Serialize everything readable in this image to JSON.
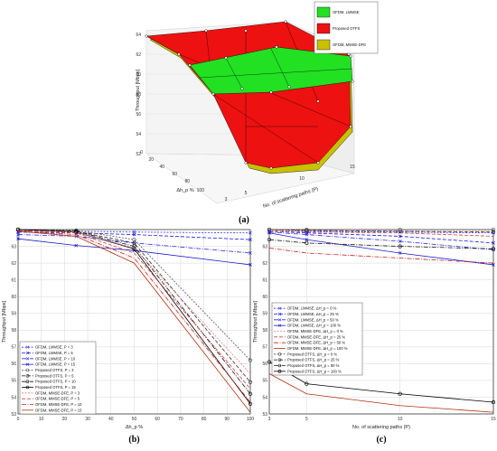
{
  "chart_data": [
    {
      "panel": "(a)",
      "type": "surface",
      "xlabel": "No. of scattering paths (P)",
      "ylabel": "Δh_p %",
      "zlabel": "Throughput [Mbps]",
      "x_ticks": [
        "3",
        "5",
        "10",
        "15"
      ],
      "y_ticks": [
        "0",
        "20",
        "40",
        "60",
        "80",
        "100"
      ],
      "z_ticks": [
        "52",
        "54",
        "56",
        "58",
        "60",
        "62",
        "64"
      ],
      "grid": true,
      "legend_position": "top-right",
      "series": [
        {
          "name": "OFDM, LMMSE",
          "color": "#22e022"
        },
        {
          "name": "Proposed OTFS",
          "color": "#ee1111"
        },
        {
          "name": "OFDM, MMSE-DFE",
          "color": "#c8c000"
        }
      ]
    },
    {
      "panel": "(b)",
      "type": "line",
      "xlabel": "Δh_p %",
      "ylabel": "Throughput [Mbps]",
      "xlim": [
        0,
        100
      ],
      "ylim": [
        53,
        64
      ],
      "x": [
        0,
        25,
        50,
        100
      ],
      "x_ticks": [
        "0",
        "10",
        "20",
        "30",
        "40",
        "50",
        "60",
        "70",
        "80",
        "90",
        "100"
      ],
      "y_ticks": [
        "53",
        "54",
        "55",
        "56",
        "57",
        "58",
        "59",
        "60",
        "61",
        "62",
        "63"
      ],
      "grid": true,
      "legend_position": "bottom-left",
      "series": [
        {
          "name": "OFDM, LMMSE, P = 3",
          "color": "#3a3aff",
          "dash": "2,1.5",
          "marker": "x",
          "values": [
            63.9,
            63.9,
            63.85,
            63.8
          ]
        },
        {
          "name": "OFDM, LMMSE, P = 5",
          "color": "#1515ee",
          "dash": "4,2",
          "marker": "x",
          "values": [
            63.85,
            63.8,
            63.7,
            63.4
          ]
        },
        {
          "name": "OFDM, LMMSE, P = 10",
          "color": "#2a2aee",
          "dash": "5,1.5,1,1.5",
          "marker": "x",
          "values": [
            63.7,
            63.6,
            63.2,
            62.6
          ]
        },
        {
          "name": "OFDM, LMMSE, P = 15",
          "color": "#1a1ad0",
          "dash": "",
          "marker": "x",
          "values": [
            63.45,
            63.05,
            62.75,
            61.9
          ]
        },
        {
          "name": "Proposed OTFS, P = 3",
          "color": "#555555",
          "dash": "2,1.5",
          "marker": "o",
          "values": [
            64.0,
            63.95,
            63.4,
            56.2
          ]
        },
        {
          "name": "Proposed OTFS, P = 5",
          "color": "#333333",
          "dash": "4,2",
          "marker": "o",
          "values": [
            64.0,
            63.9,
            63.2,
            54.9
          ]
        },
        {
          "name": "Proposed OTFS, P = 10",
          "color": "#111111",
          "dash": "5,1.5,1,1.5",
          "marker": "o",
          "values": [
            64.0,
            63.9,
            63.0,
            54.2
          ]
        },
        {
          "name": "Proposed OTFS, P = 15",
          "color": "#000000",
          "dash": "",
          "marker": "o",
          "values": [
            64.0,
            63.85,
            62.85,
            53.6
          ]
        },
        {
          "name": "OFDM, MMSE-DFE, P = 3",
          "color": "#e08080",
          "dash": "2,1.5",
          "marker": "",
          "values": [
            63.95,
            63.85,
            62.9,
            55.4
          ]
        },
        {
          "name": "OFDM, MMSE-DFE, P = 5",
          "color": "#d04040",
          "dash": "4,2",
          "marker": "",
          "values": [
            63.95,
            63.8,
            62.6,
            54.5
          ]
        },
        {
          "name": "OFDM, MMSE-DFE, P = 10",
          "color": "#c02020",
          "dash": "5,1.5,1,1.5",
          "marker": "",
          "values": [
            63.9,
            63.7,
            62.3,
            53.7
          ]
        },
        {
          "name": "OFDM, MMSE-DFE, P = 15",
          "color": "#b03010",
          "dash": "",
          "marker": "",
          "values": [
            63.9,
            63.6,
            62.0,
            53.1
          ]
        }
      ]
    },
    {
      "panel": "(c)",
      "type": "line",
      "xlabel": "No. of scattering paths (P)",
      "ylabel": "Throughput [Mbps]",
      "xlim": [
        3,
        15
      ],
      "ylim": [
        53,
        64
      ],
      "x": [
        3,
        5,
        10,
        15
      ],
      "x_ticks": [
        "3",
        "5",
        "10",
        "15"
      ],
      "y_ticks": [
        "53",
        "54",
        "55",
        "56",
        "57",
        "58",
        "59",
        "60",
        "61",
        "62",
        "63"
      ],
      "grid": true,
      "legend_position": "center-left",
      "series": [
        {
          "name": "OFDM, LMMSE, ΔH_p = 0 %",
          "color": "#3a3aff",
          "dash": "2,1.5",
          "marker": "x",
          "values": [
            63.95,
            63.9,
            63.85,
            63.8
          ]
        },
        {
          "name": "OFDM, LMMSE, ΔH_p = 25 %",
          "color": "#1515ee",
          "dash": "4,2",
          "marker": "x",
          "values": [
            63.9,
            63.8,
            63.6,
            63.2
          ]
        },
        {
          "name": "OFDM, LMMSE, ΔH_p = 50 %",
          "color": "#2a2aee",
          "dash": "5,1.5,1,1.5",
          "marker": "x",
          "values": [
            63.85,
            63.7,
            63.3,
            62.8
          ]
        },
        {
          "name": "OFDM, LMMSE, ΔH_p = 100 %",
          "color": "#1a1ad0",
          "dash": "",
          "marker": "x",
          "values": [
            63.8,
            63.4,
            62.6,
            61.9
          ]
        },
        {
          "name": "OFDM, MMSE-DFE, ΔH_p = 0 %",
          "color": "#e08080",
          "dash": "2,1.5",
          "marker": "",
          "values": [
            63.95,
            63.95,
            63.9,
            63.9
          ]
        },
        {
          "name": "OFDM, MMSE-DFE, ΔH_p = 25 %",
          "color": "#d04040",
          "dash": "4,2",
          "marker": "",
          "values": [
            63.9,
            63.85,
            63.8,
            63.6
          ]
        },
        {
          "name": "OFDM, MMSE-DFE, ΔH_p = 50 %",
          "color": "#c02020",
          "dash": "5,1.5,1,1.5",
          "marker": "",
          "values": [
            62.9,
            62.6,
            62.3,
            62.0
          ]
        },
        {
          "name": "OFDM, MMSE-DFE, ΔH_p = 100 %",
          "color": "#b03010",
          "dash": "",
          "marker": "",
          "values": [
            55.4,
            54.2,
            53.5,
            53.1
          ]
        },
        {
          "name": "Proposed OTFS, ΔH_p = 0 %",
          "color": "#555555",
          "dash": "2,1.5",
          "marker": "o",
          "values": [
            64.0,
            64.0,
            64.0,
            64.0
          ]
        },
        {
          "name": "Proposed OTFS, ΔH_p = 25 %",
          "color": "#333333",
          "dash": "4,2",
          "marker": "o",
          "values": [
            64.0,
            63.95,
            63.9,
            63.85
          ]
        },
        {
          "name": "Proposed OTFS, ΔH_p = 50 %",
          "color": "#111111",
          "dash": "5,1.5,1,1.5",
          "marker": "o",
          "values": [
            63.4,
            63.2,
            63.0,
            62.85
          ]
        },
        {
          "name": "Proposed OTFS, ΔH_p = 100 %",
          "color": "#000000",
          "dash": "",
          "marker": "o",
          "values": [
            56.1,
            54.8,
            54.2,
            53.7
          ]
        }
      ]
    }
  ]
}
